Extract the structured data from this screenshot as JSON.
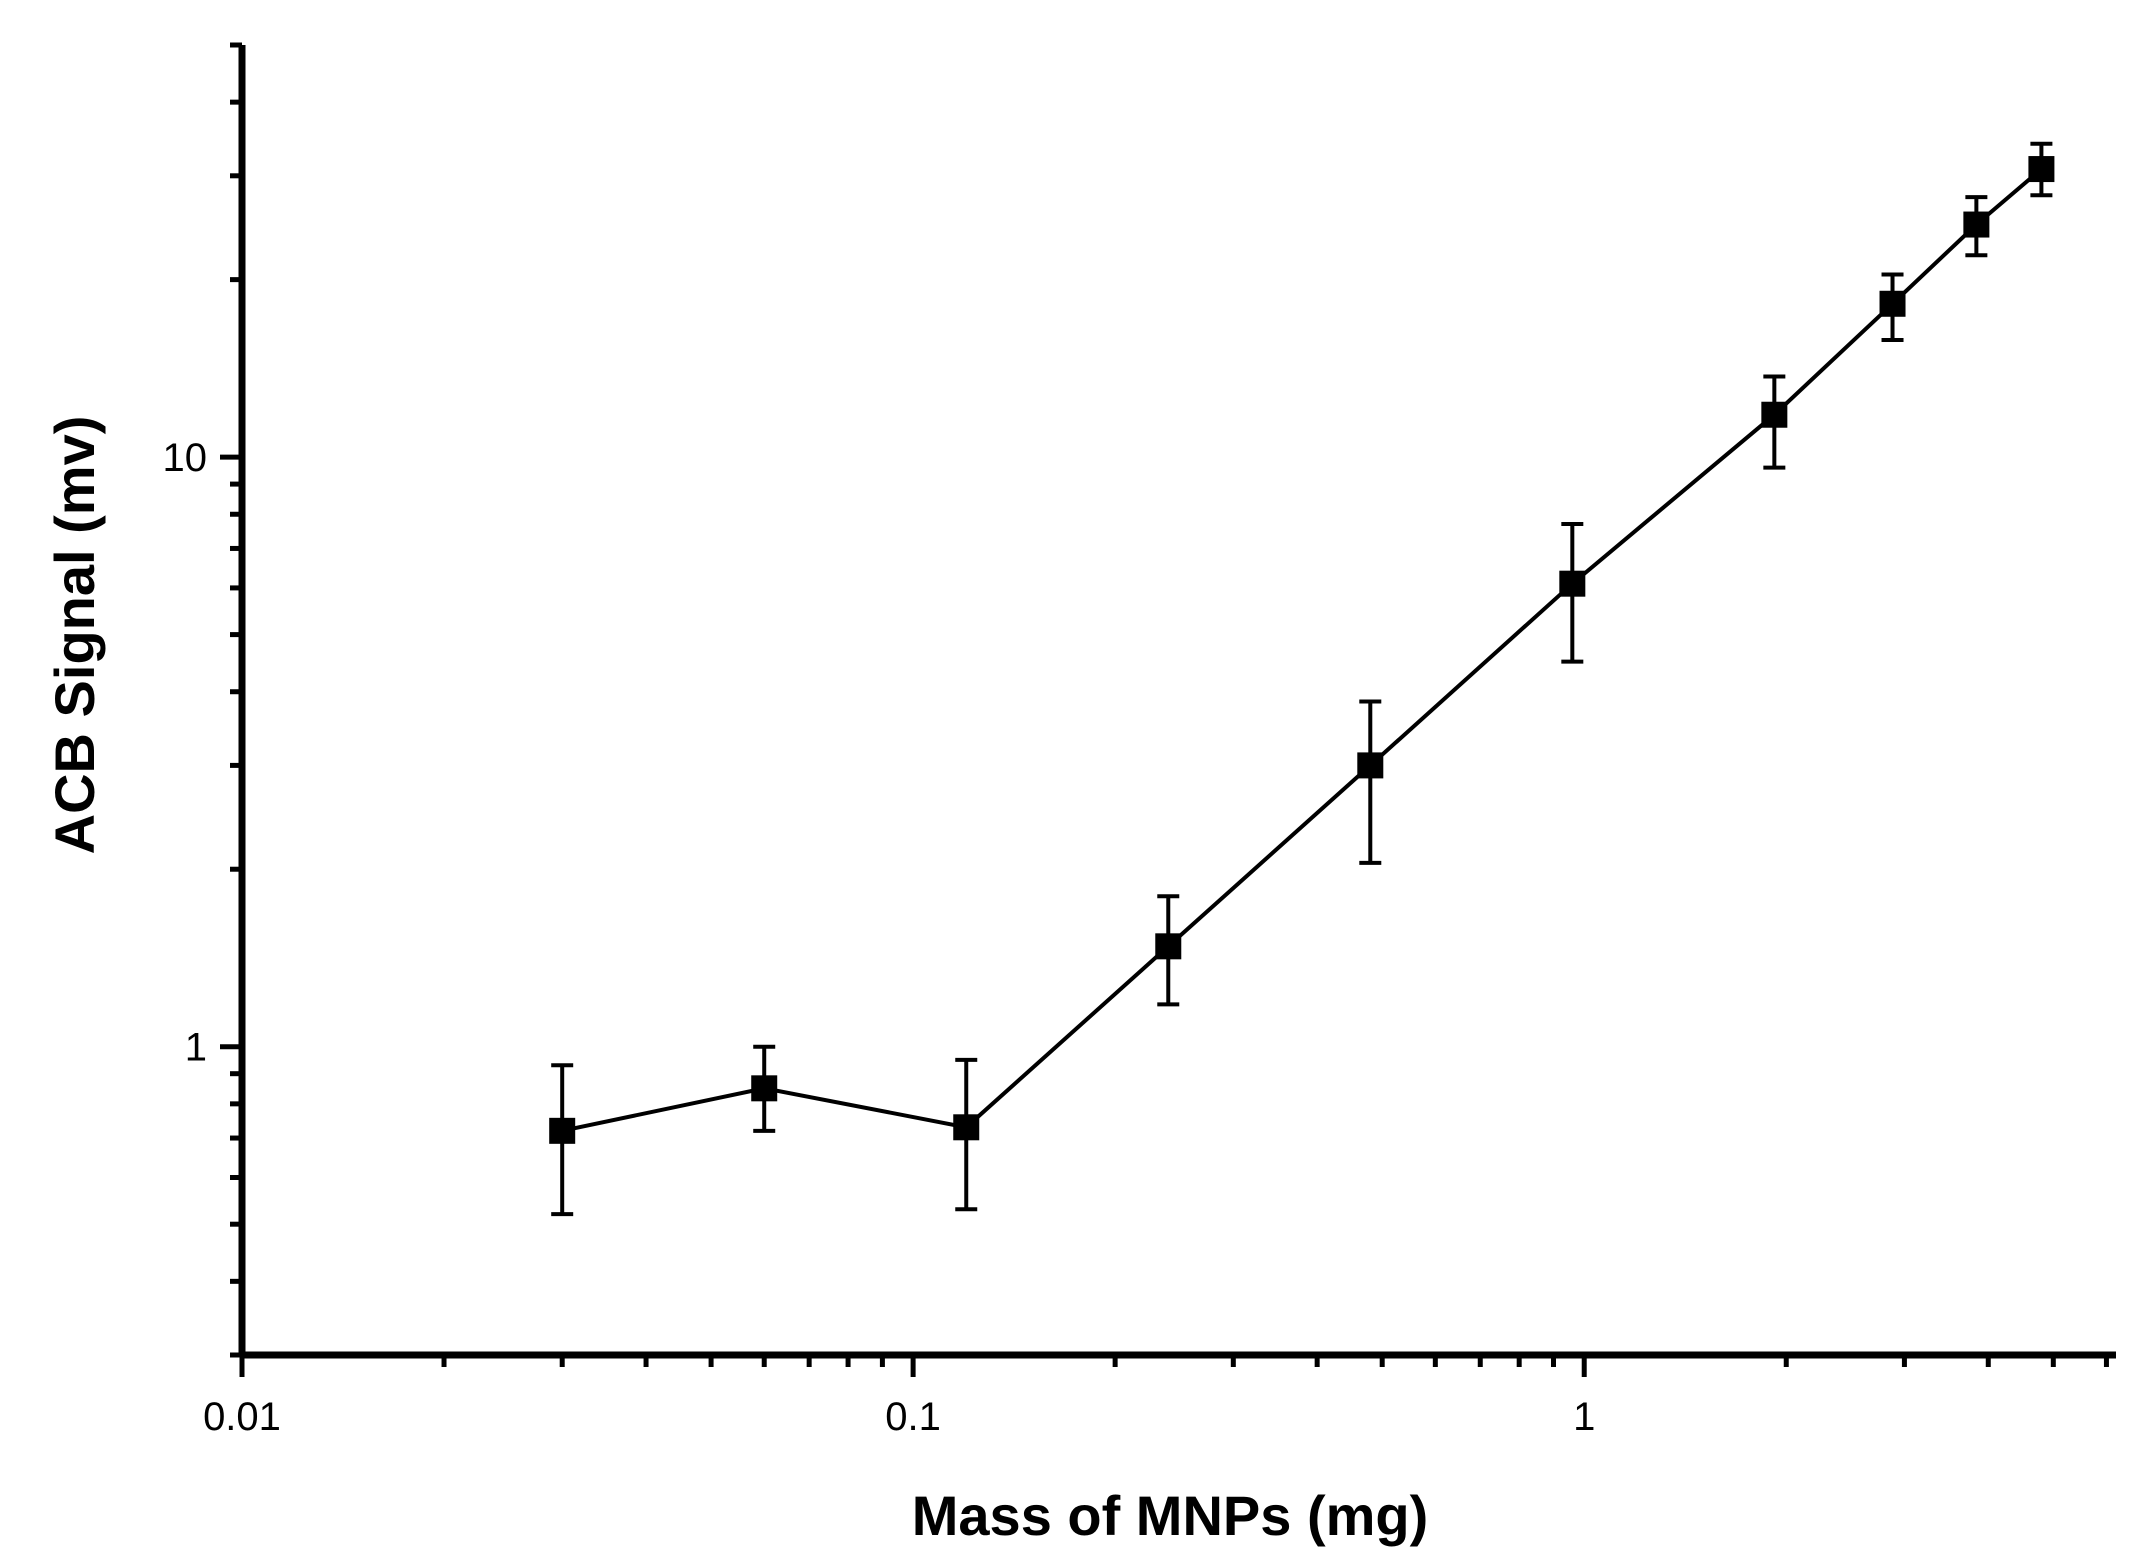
{
  "chart_data": {
    "type": "line",
    "x_scale": "log",
    "y_scale": "log",
    "title": "",
    "xlabel": "Mass of MNPs (mg)",
    "ylabel": "ACB Signal (mv)",
    "xlim": [
      0.01,
      6.2
    ],
    "ylim": [
      0.3,
      50
    ],
    "x_tick_labels": [
      "0.01",
      "0.1",
      "1"
    ],
    "y_tick_labels": [
      "1",
      "10"
    ],
    "grid": false,
    "legend": "none",
    "marker": "square",
    "series": [
      {
        "name": "ACB Signal",
        "points": [
          {
            "x": 0.03,
            "y": 0.72,
            "y_low": 0.52,
            "y_high": 0.93
          },
          {
            "x": 0.06,
            "y": 0.85,
            "y_low": 0.72,
            "y_high": 1.0
          },
          {
            "x": 0.12,
            "y": 0.73,
            "y_low": 0.53,
            "y_high": 0.95
          },
          {
            "x": 0.24,
            "y": 1.48,
            "y_low": 1.18,
            "y_high": 1.8
          },
          {
            "x": 0.48,
            "y": 3.0,
            "y_low": 2.05,
            "y_high": 3.85
          },
          {
            "x": 0.96,
            "y": 6.1,
            "y_low": 4.5,
            "y_high": 7.7
          },
          {
            "x": 1.92,
            "y": 11.8,
            "y_low": 9.6,
            "y_high": 13.7
          },
          {
            "x": 2.88,
            "y": 18.2,
            "y_low": 15.8,
            "y_high": 20.4
          },
          {
            "x": 3.84,
            "y": 24.8,
            "y_low": 22.0,
            "y_high": 27.6
          },
          {
            "x": 4.8,
            "y": 30.8,
            "y_low": 27.8,
            "y_high": 34.0
          }
        ]
      }
    ]
  }
}
